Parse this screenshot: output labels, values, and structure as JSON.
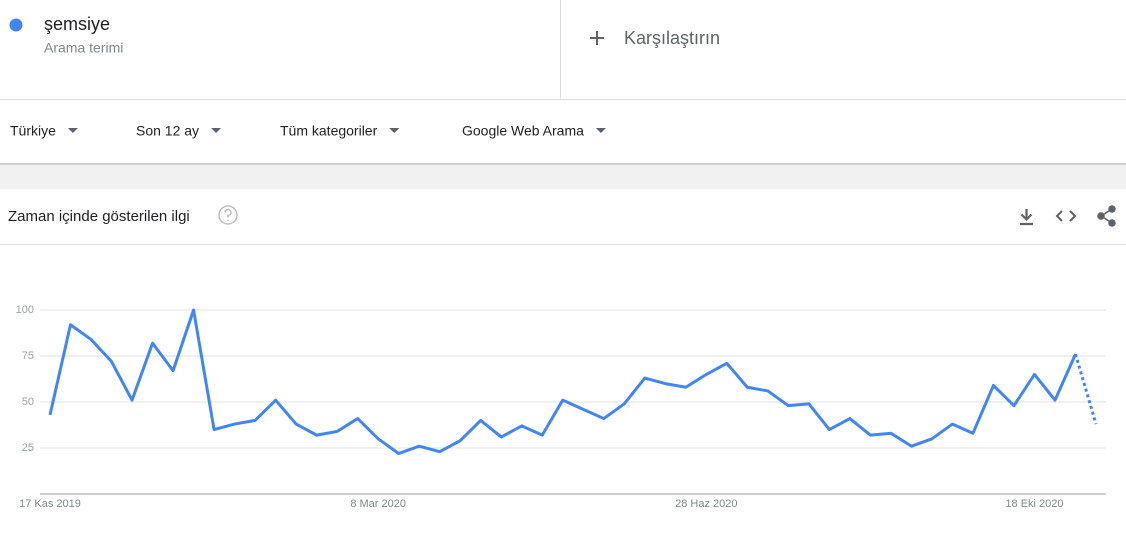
{
  "header": {
    "term_type": "Arama terimi",
    "compare": "Karşılaştırın"
  },
  "filters": [
    "Türkiye",
    "Son 12 ay",
    "Tüm kategoriler",
    "Google Web Arama"
  ],
  "card": {
    "title": "Zaman içinde gösterilen ilgi"
  },
  "chart_data": {
    "type": "line",
    "categories": [
      "17 Kas 2019",
      null,
      null,
      null,
      null,
      null,
      null,
      null,
      null,
      null,
      null,
      null,
      null,
      null,
      null,
      null,
      "8 Mar 2020",
      null,
      null,
      null,
      null,
      null,
      null,
      null,
      null,
      null,
      null,
      null,
      null,
      null,
      null,
      null,
      "28 Haz 2020",
      null,
      null,
      null,
      null,
      null,
      null,
      null,
      null,
      null,
      null,
      null,
      null,
      null,
      null,
      null,
      "18 Eki 2020",
      null,
      null,
      null
    ],
    "series": [
      {
        "name": "şemsiye",
        "color": "#4285f4",
        "values": [
          43,
          92,
          84,
          72,
          51,
          82,
          67,
          100,
          35,
          38,
          40,
          51,
          38,
          32,
          34,
          41,
          30,
          22,
          26,
          23,
          29,
          40,
          31,
          37,
          32,
          51,
          46,
          41,
          49,
          63,
          60,
          58,
          65,
          71,
          58,
          56,
          48,
          49,
          35,
          41,
          32,
          33,
          26,
          30,
          38,
          33,
          59,
          48,
          65,
          51,
          76,
          38
        ]
      }
    ],
    "ylim": [
      0,
      100
    ],
    "yticks": [
      25,
      50,
      75,
      100
    ],
    "grid": true
  }
}
